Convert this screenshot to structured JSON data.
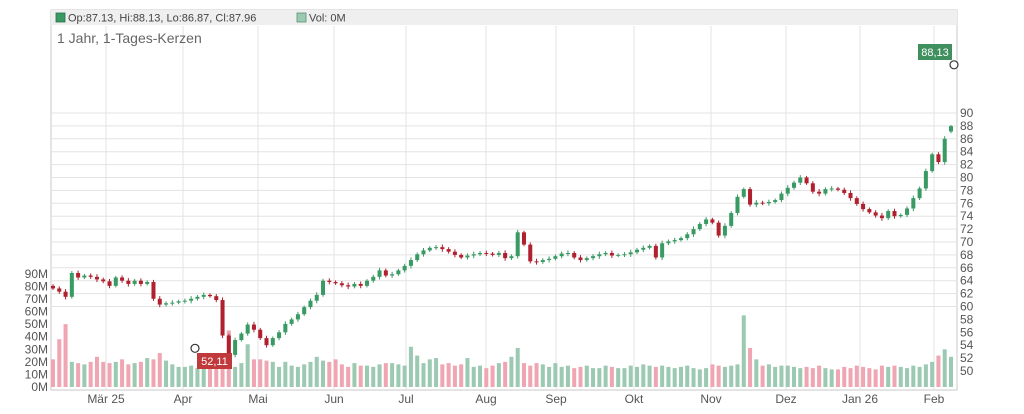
{
  "header": {
    "ohlc_label": "Op:87.13, Hi:88.13, Lo:86.87, Cl:87.96",
    "vol_label": "Vol: 0M",
    "title": "1 Jahr, 1-Tages-Kerzen"
  },
  "colors": {
    "up": "#3a9a64",
    "down": "#b0202e",
    "volume_up": "#9cc9b2",
    "volume_down": "#efa6b2",
    "grid": "#e3e3e3",
    "axis_text": "#555555",
    "high_badge": "#3f8f5f",
    "low_badge": "#c0393b"
  },
  "chart_data": {
    "type": "candlestick",
    "title": "1 Jahr, 1-Tages-Kerzen",
    "x_labels": [
      "Mär 25",
      "Apr",
      "Mai",
      "Jun",
      "Jul",
      "Aug",
      "Sep",
      "Okt",
      "Nov",
      "Dez",
      "Jan 26",
      "Feb"
    ],
    "price_axis": {
      "min": 48,
      "max": 92,
      "ticks": [
        50,
        52,
        54,
        56,
        58,
        60,
        62,
        64,
        66,
        68,
        70,
        72,
        74,
        76,
        78,
        80,
        82,
        84,
        86,
        88,
        90
      ]
    },
    "volume_axis": {
      "min": 0,
      "max": 90,
      "unit": "M",
      "ticks": [
        "0M",
        "10M",
        "20M",
        "30M",
        "40M",
        "50M",
        "60M",
        "70M",
        "80M",
        "90M"
      ]
    },
    "high_marker": {
      "label": "88,13",
      "value": 88.13
    },
    "low_marker": {
      "label": "52,11",
      "value": 52.11
    },
    "last_candle": {
      "open": 87.13,
      "high": 88.13,
      "low": 86.87,
      "close": 87.96,
      "volume": 0
    },
    "closes": [
      62.8,
      62.3,
      61.5,
      65.2,
      64.5,
      64.8,
      64.6,
      64.2,
      63.9,
      63.2,
      64.5,
      64.0,
      63.5,
      64.0,
      63.5,
      63.8,
      61.2,
      60.3,
      60.5,
      60.6,
      60.8,
      60.9,
      61.2,
      61.5,
      61.8,
      61.6,
      61.0,
      55.5,
      52.5,
      54.8,
      55.8,
      57.2,
      56.4,
      55.1,
      54.0,
      55.1,
      56.0,
      57.3,
      58.0,
      58.8,
      59.9,
      60.9,
      61.8,
      64.0,
      63.8,
      63.6,
      63.3,
      63.1,
      63.5,
      63.2,
      64.0,
      64.6,
      65.6,
      64.8,
      65.0,
      65.6,
      66.3,
      67.2,
      68.1,
      68.7,
      69.1,
      69.2,
      68.9,
      68.5,
      68.0,
      67.6,
      67.9,
      68.1,
      68.3,
      68.2,
      68.0,
      68.3,
      67.5,
      67.8,
      71.5,
      69.6,
      67.0,
      66.9,
      67.2,
      67.4,
      67.8,
      68.2,
      68.3,
      67.6,
      67.2,
      67.5,
      67.8,
      68.1,
      68.3,
      67.9,
      68.0,
      68.1,
      68.4,
      68.8,
      69.1,
      69.4,
      67.6,
      69.8,
      70.1,
      70.3,
      70.6,
      71.2,
      72.0,
      72.8,
      73.5,
      73.0,
      71.0,
      72.5,
      74.5,
      77.0,
      78.2,
      75.8,
      76.1,
      76.0,
      76.2,
      76.5,
      77.5,
      78.4,
      79.2,
      80.0,
      79.1,
      77.8,
      77.5,
      78.2,
      78.3,
      78.1,
      77.6,
      76.8,
      75.9,
      75.1,
      74.6,
      74.1,
      73.7,
      74.8,
      74.0,
      74.2,
      75.2,
      76.8,
      78.3,
      81.0,
      83.6,
      82.4,
      86.0,
      87.96
    ],
    "volumes": [
      22,
      38,
      50,
      20,
      19,
      18,
      20,
      24,
      20,
      19,
      20,
      22,
      18,
      19,
      20,
      23,
      22,
      27,
      21,
      18,
      16,
      16,
      17,
      15,
      16,
      17,
      17,
      24,
      45,
      16,
      19,
      34,
      22,
      22,
      21,
      20,
      16,
      20,
      17,
      16,
      18,
      20,
      24,
      21,
      20,
      22,
      18,
      16,
      19,
      17,
      17,
      16,
      18,
      19,
      19,
      18,
      17,
      32,
      25,
      19,
      22,
      23,
      18,
      19,
      17,
      18,
      23,
      16,
      17,
      15,
      17,
      19,
      20,
      24,
      31,
      19,
      17,
      19,
      18,
      16,
      19,
      16,
      17,
      15,
      16,
      17,
      15,
      15,
      17,
      16,
      15,
      15,
      17,
      16,
      18,
      17,
      16,
      17,
      16,
      15,
      16,
      17,
      15,
      14,
      15,
      18,
      17,
      16,
      17,
      18,
      57,
      31,
      22,
      17,
      18,
      16,
      17,
      17,
      16,
      15,
      16,
      15,
      17,
      15,
      14,
      14,
      16,
      15,
      17,
      16,
      15,
      14,
      17,
      16,
      17,
      16,
      15,
      17,
      16,
      18,
      20,
      25,
      30,
      24,
      22,
      0
    ]
  }
}
